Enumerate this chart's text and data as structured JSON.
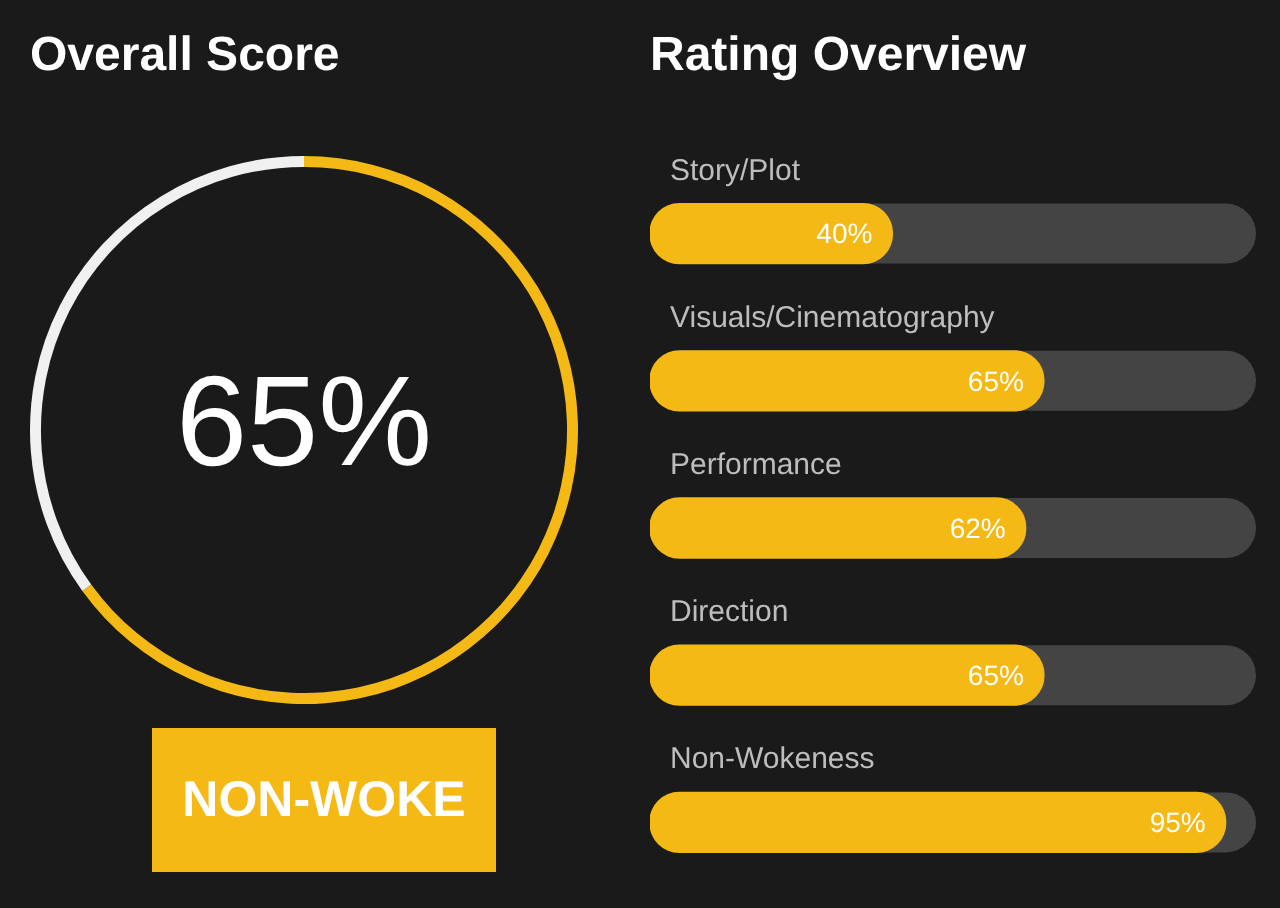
{
  "chart_data": [
    {
      "type": "donut",
      "title": "Overall Score",
      "categories": [
        null,
        null
      ],
      "values": [
        65,
        35
      ],
      "colors": [
        "#f4b915",
        "#f0f0f0"
      ],
      "value_labels": [
        "65%",
        null
      ],
      "annotations": [
        "NON-WOKE"
      ]
    },
    {
      "type": "bar",
      "title": "Rating Overview",
      "orientation": "horizontal",
      "categories": [
        "Story/Plot",
        "Visuals/Cinematography",
        "Performance",
        "Direction",
        "Non-Wokeness"
      ],
      "values": [
        40,
        65,
        62,
        65,
        95
      ],
      "color": "#f4b915",
      "xlim": [
        0,
        100
      ],
      "value_labels": [
        "40%",
        "65%",
        "62%",
        "65%",
        "95%"
      ]
    }
  ]
}
